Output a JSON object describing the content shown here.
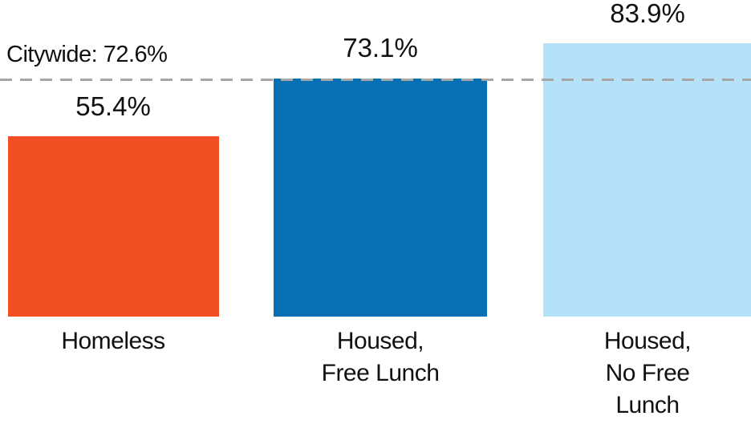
{
  "chart_data": {
    "type": "bar",
    "categories": [
      "Homeless",
      "Housed, Free Lunch",
      "Housed, No Free Lunch"
    ],
    "category_lines": [
      [
        "Homeless"
      ],
      [
        "Housed,",
        "Free Lunch"
      ],
      [
        "Housed,",
        "No Free",
        "Lunch"
      ]
    ],
    "values": [
      55.4,
      73.1,
      83.9
    ],
    "value_labels": [
      "55.4%",
      "73.1%",
      "83.9%"
    ],
    "colors": [
      "#f04e23",
      "#0670b2",
      "#b5e2f8"
    ],
    "benchmark": {
      "label": "Citywide: 72.6%",
      "value": 72.6,
      "line_color": "#a6a6a6",
      "line_style": "dashed"
    },
    "title": "",
    "xlabel": "",
    "ylabel": "",
    "ylim": [
      0,
      100
    ],
    "grid": false,
    "legend": false,
    "text_color": "#111111",
    "background_color": "#ffffff"
  }
}
